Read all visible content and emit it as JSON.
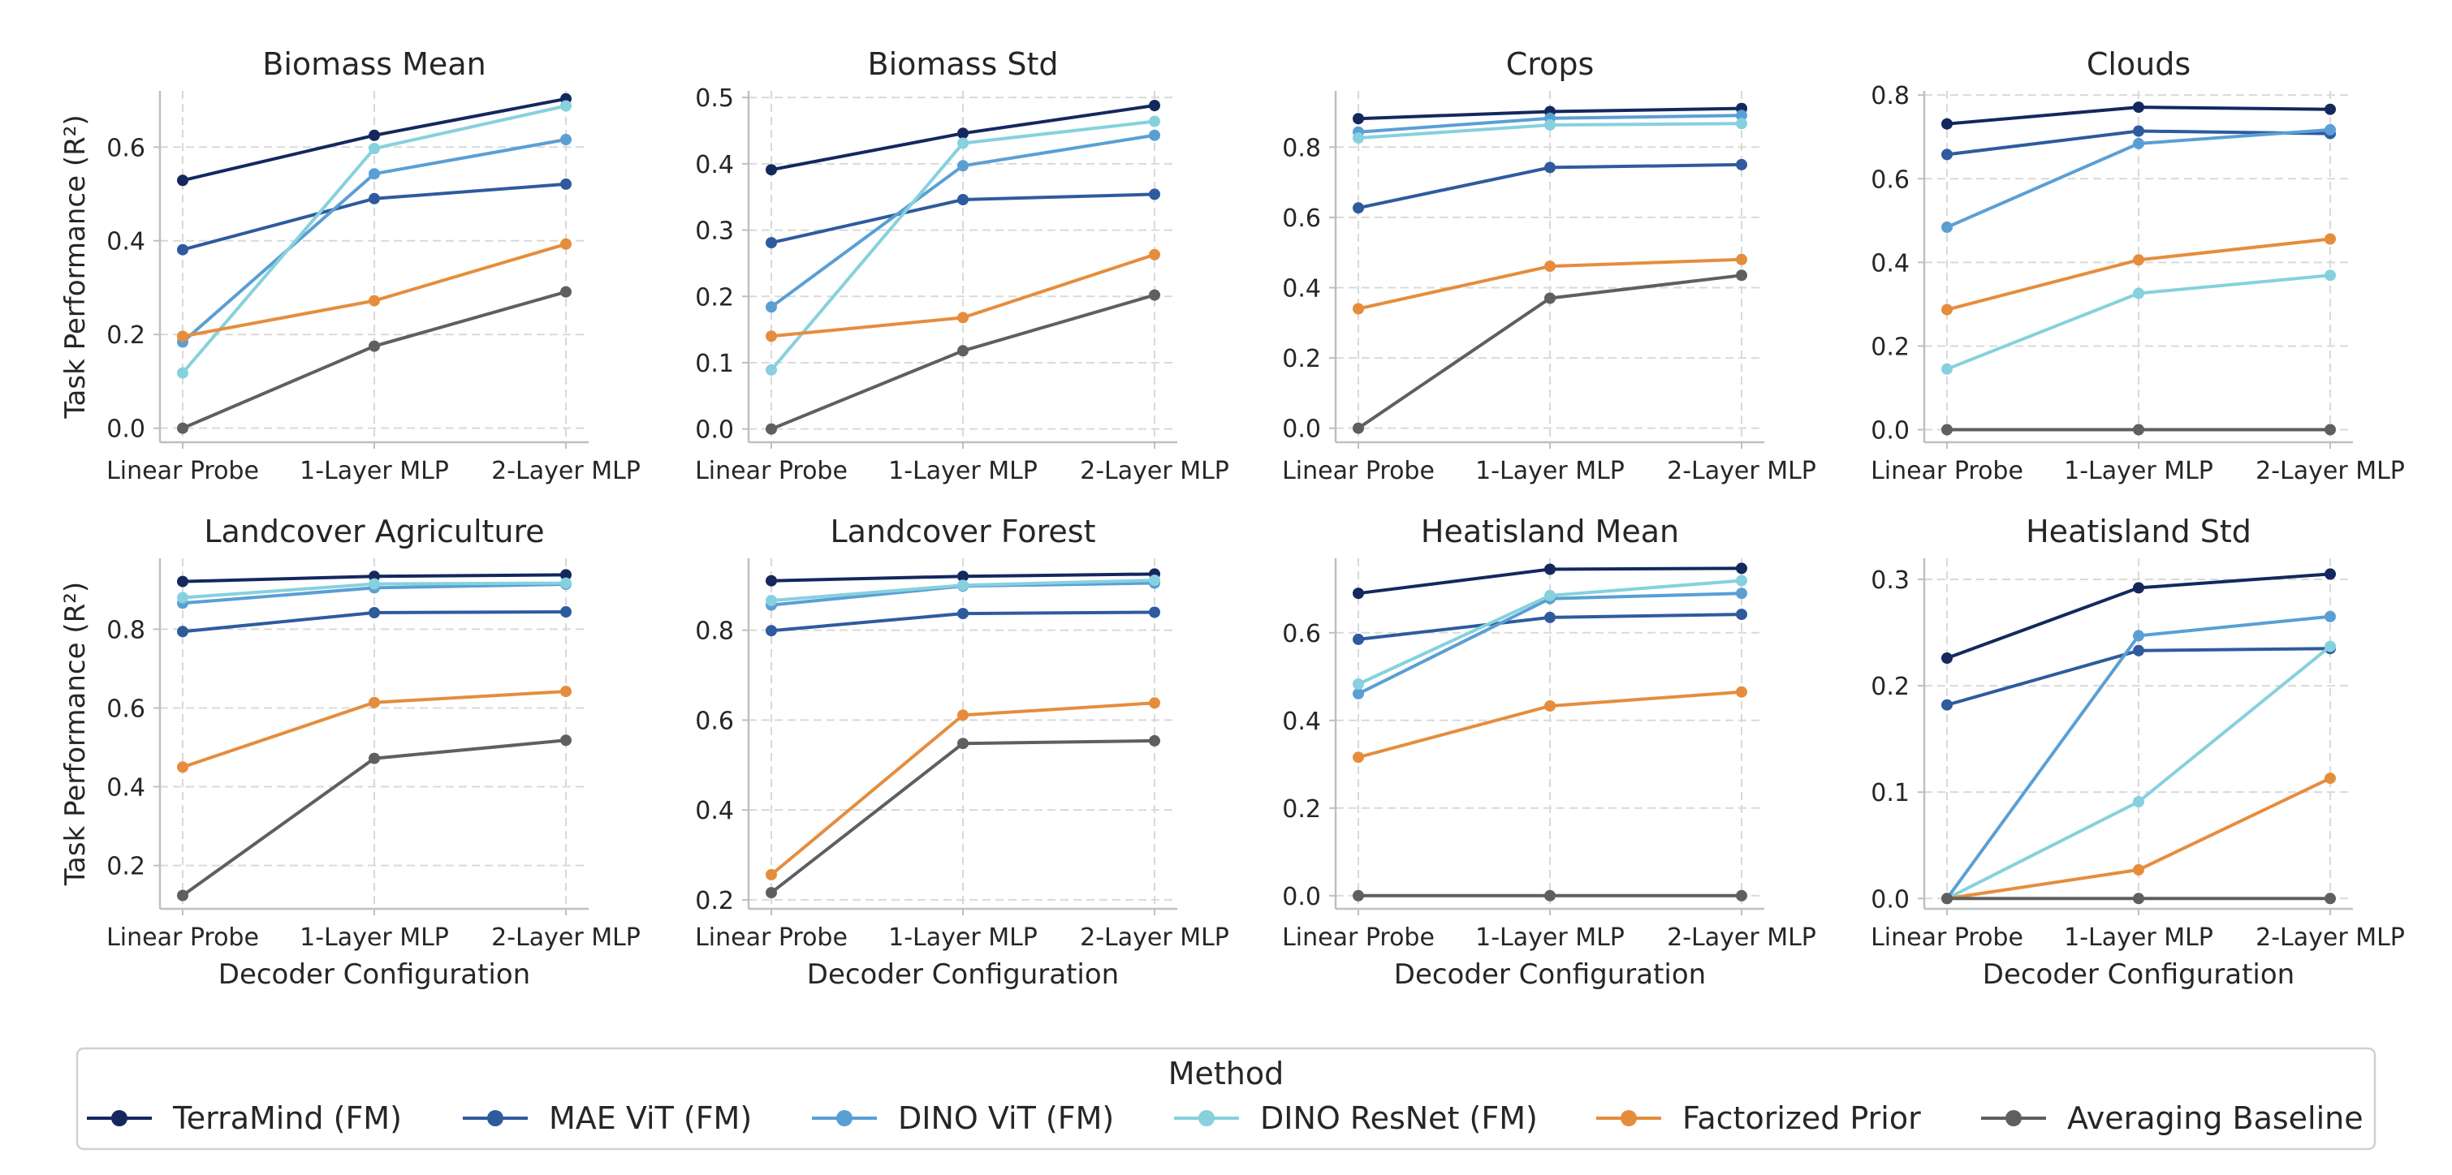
{
  "chart_data": {
    "type": "line",
    "categories": [
      "Linear Probe",
      "1-Layer MLP",
      "2-Layer MLP"
    ],
    "xlabel": "Decoder Configuration",
    "ylabel": "Task Performance (R²)",
    "legend": {
      "title": "Method",
      "placement": "bottom-center",
      "entries": [
        {
          "name": "TerraMind (FM)",
          "color": "#14285e"
        },
        {
          "name": "MAE ViT (FM)",
          "color": "#2e5b9e"
        },
        {
          "name": "DINO ViT (FM)",
          "color": "#5a9fd4"
        },
        {
          "name": "DINO ResNet (FM)",
          "color": "#86d1dd"
        },
        {
          "name": "Factorized Prior",
          "color": "#e58d3d"
        },
        {
          "name": "Averaging Baseline",
          "color": "#5f5f5f"
        }
      ]
    },
    "grid": true,
    "panels": [
      {
        "title": "Biomass Mean",
        "ylim": [
          -0.03,
          0.72
        ],
        "yticks": [
          "0.0",
          "0.2",
          "0.4",
          "0.6"
        ],
        "series": [
          {
            "name": "TerraMind (FM)",
            "values": [
              0.529,
              0.625,
              0.703
            ]
          },
          {
            "name": "MAE ViT (FM)",
            "values": [
              0.381,
              0.49,
              0.521
            ]
          },
          {
            "name": "DINO ViT (FM)",
            "values": [
              0.184,
              0.543,
              0.616
            ]
          },
          {
            "name": "DINO ResNet (FM)",
            "values": [
              0.118,
              0.597,
              0.688
            ]
          },
          {
            "name": "Factorized Prior",
            "values": [
              0.196,
              0.272,
              0.393
            ]
          },
          {
            "name": "Averaging Baseline",
            "values": [
              0.0,
              0.175,
              0.291
            ]
          }
        ]
      },
      {
        "title": "Biomass Std",
        "ylim": [
          -0.02,
          0.51
        ],
        "yticks": [
          "0.0",
          "0.1",
          "0.2",
          "0.3",
          "0.4",
          "0.5"
        ],
        "series": [
          {
            "name": "TerraMind (FM)",
            "values": [
              0.391,
              0.446,
              0.488
            ]
          },
          {
            "name": "MAE ViT (FM)",
            "values": [
              0.281,
              0.346,
              0.354
            ]
          },
          {
            "name": "DINO ViT (FM)",
            "values": [
              0.184,
              0.397,
              0.443
            ]
          },
          {
            "name": "DINO ResNet (FM)",
            "values": [
              0.089,
              0.431,
              0.464
            ]
          },
          {
            "name": "Factorized Prior",
            "values": [
              0.14,
              0.168,
              0.263
            ]
          },
          {
            "name": "Averaging Baseline",
            "values": [
              0.0,
              0.118,
              0.202
            ]
          }
        ]
      },
      {
        "title": "Crops",
        "ylim": [
          -0.04,
          0.96
        ],
        "yticks": [
          "0.0",
          "0.2",
          "0.4",
          "0.6",
          "0.8"
        ],
        "series": [
          {
            "name": "TerraMind (FM)",
            "values": [
              0.881,
              0.901,
              0.91
            ]
          },
          {
            "name": "MAE ViT (FM)",
            "values": [
              0.627,
              0.742,
              0.75
            ]
          },
          {
            "name": "DINO ViT (FM)",
            "values": [
              0.843,
              0.882,
              0.89
            ]
          },
          {
            "name": "DINO ResNet (FM)",
            "values": [
              0.826,
              0.863,
              0.867
            ]
          },
          {
            "name": "Factorized Prior",
            "values": [
              0.34,
              0.461,
              0.48
            ]
          },
          {
            "name": "Averaging Baseline",
            "values": [
              0.0,
              0.37,
              0.435
            ]
          }
        ]
      },
      {
        "title": "Clouds",
        "ylim": [
          -0.03,
          0.81
        ],
        "yticks": [
          "0.0",
          "0.2",
          "0.4",
          "0.6",
          "0.8"
        ],
        "series": [
          {
            "name": "TerraMind (FM)",
            "values": [
              0.731,
              0.771,
              0.766
            ]
          },
          {
            "name": "MAE ViT (FM)",
            "values": [
              0.658,
              0.714,
              0.708
            ]
          },
          {
            "name": "DINO ViT (FM)",
            "values": [
              0.484,
              0.684,
              0.717
            ]
          },
          {
            "name": "DINO ResNet (FM)",
            "values": [
              0.145,
              0.326,
              0.369
            ]
          },
          {
            "name": "Factorized Prior",
            "values": [
              0.287,
              0.406,
              0.456
            ]
          },
          {
            "name": "Averaging Baseline",
            "values": [
              0.0,
              0.0,
              0.0
            ]
          }
        ]
      },
      {
        "title": "Landcover Agriculture",
        "ylim": [
          0.09,
          0.98
        ],
        "yticks": [
          "0.2",
          "0.4",
          "0.6",
          "0.8"
        ],
        "series": [
          {
            "name": "TerraMind (FM)",
            "values": [
              0.921,
              0.934,
              0.938
            ]
          },
          {
            "name": "MAE ViT (FM)",
            "values": [
              0.794,
              0.842,
              0.844
            ]
          },
          {
            "name": "DINO ViT (FM)",
            "values": [
              0.866,
              0.905,
              0.914
            ]
          },
          {
            "name": "DINO ResNet (FM)",
            "values": [
              0.88,
              0.915,
              0.917
            ]
          },
          {
            "name": "Factorized Prior",
            "values": [
              0.45,
              0.614,
              0.642
            ]
          },
          {
            "name": "Averaging Baseline",
            "values": [
              0.124,
              0.472,
              0.518
            ]
          }
        ]
      },
      {
        "title": "Landcover Forest",
        "ylim": [
          0.18,
          0.96
        ],
        "yticks": [
          "0.2",
          "0.4",
          "0.6",
          "0.8"
        ],
        "series": [
          {
            "name": "TerraMind (FM)",
            "values": [
              0.91,
              0.92,
              0.925
            ]
          },
          {
            "name": "MAE ViT (FM)",
            "values": [
              0.799,
              0.837,
              0.84
            ]
          },
          {
            "name": "DINO ViT (FM)",
            "values": [
              0.856,
              0.898,
              0.905
            ]
          },
          {
            "name": "DINO ResNet (FM)",
            "values": [
              0.866,
              0.9,
              0.911
            ]
          },
          {
            "name": "Factorized Prior",
            "values": [
              0.256,
              0.611,
              0.638
            ]
          },
          {
            "name": "Averaging Baseline",
            "values": [
              0.216,
              0.548,
              0.554
            ]
          }
        ]
      },
      {
        "title": "Heatisland Mean",
        "ylim": [
          -0.03,
          0.77
        ],
        "yticks": [
          "0.0",
          "0.2",
          "0.4",
          "0.6"
        ],
        "series": [
          {
            "name": "TerraMind (FM)",
            "values": [
              0.69,
              0.745,
              0.747
            ]
          },
          {
            "name": "MAE ViT (FM)",
            "values": [
              0.585,
              0.635,
              0.642
            ]
          },
          {
            "name": "DINO ViT (FM)",
            "values": [
              0.461,
              0.678,
              0.69
            ]
          },
          {
            "name": "DINO ResNet (FM)",
            "values": [
              0.483,
              0.685,
              0.719
            ]
          },
          {
            "name": "Factorized Prior",
            "values": [
              0.316,
              0.433,
              0.465
            ]
          },
          {
            "name": "Averaging Baseline",
            "values": [
              0.0,
              0.0,
              0.0
            ]
          }
        ]
      },
      {
        "title": "Heatisland Std",
        "ylim": [
          -0.0097,
          0.3198
        ],
        "yticks": [
          "0.0",
          "0.1",
          "0.2",
          "0.3"
        ],
        "series": [
          {
            "name": "TerraMind (FM)",
            "values": [
              0.226,
              0.292,
              0.305
            ]
          },
          {
            "name": "MAE ViT (FM)",
            "values": [
              0.182,
              0.233,
              0.235
            ]
          },
          {
            "name": "DINO ViT (FM)",
            "values": [
              0.0,
              0.247,
              0.265
            ]
          },
          {
            "name": "DINO ResNet (FM)",
            "values": [
              0.0,
              0.091,
              0.237
            ]
          },
          {
            "name": "Factorized Prior",
            "values": [
              0.0,
              0.027,
              0.113
            ]
          },
          {
            "name": "Averaging Baseline",
            "values": [
              0.0,
              0.0,
              0.0
            ]
          }
        ]
      }
    ]
  }
}
